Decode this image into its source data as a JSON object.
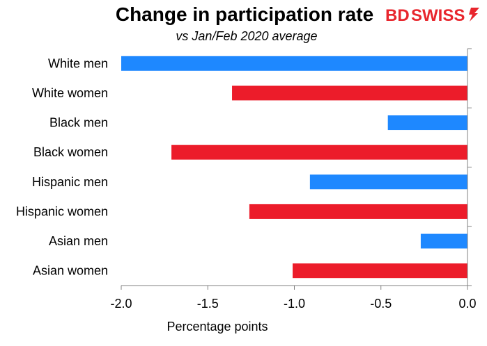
{
  "chart_data": {
    "type": "bar",
    "orientation": "horizontal",
    "title": "Change in participation rate",
    "subtitle": "vs Jan/Feb 2020 average",
    "xlabel": "Percentage points",
    "ylabel": "",
    "xlim": [
      -2.0,
      0.0
    ],
    "x_ticks": [
      "-2.0",
      "-1.5",
      "-1.0",
      "-0.5",
      "0.0"
    ],
    "x_tick_values": [
      -2.0,
      -1.5,
      -1.0,
      -0.5,
      0.0
    ],
    "grid": false,
    "legend": "none",
    "categories": [
      "White men",
      "White women",
      "Black men",
      "Black women",
      "Hispanic men",
      "Hispanic women",
      "Asian men",
      "Asian women"
    ],
    "values": [
      -2.0,
      -1.36,
      -0.46,
      -1.71,
      -0.91,
      -1.26,
      -0.27,
      -1.01
    ],
    "bar_colors": [
      "#1e88ff",
      "#ec1c2a",
      "#1e88ff",
      "#ec1c2a",
      "#1e88ff",
      "#ec1c2a",
      "#1e88ff",
      "#ec1c2a"
    ]
  },
  "logo": {
    "text_bd": "BD",
    "text_swiss": "SWISS",
    "color": "#e8262d"
  }
}
